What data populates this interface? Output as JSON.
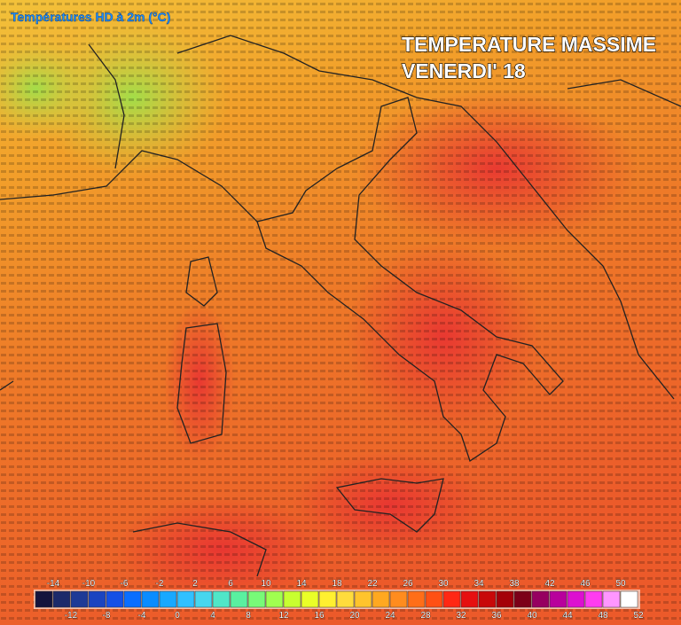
{
  "header": {
    "title": "Températures HD à 2m (°C)",
    "overlay_line1": "TEMPERATURE MASSIME",
    "overlay_line2": "VENERDI' 18"
  },
  "legend": {
    "top_labels": [
      -14,
      -10,
      -6,
      -2,
      2,
      6,
      10,
      14,
      18,
      22,
      26,
      30,
      34,
      38,
      42,
      46,
      50
    ],
    "bottom_labels": [
      -12,
      -8,
      -4,
      0,
      4,
      8,
      12,
      16,
      20,
      24,
      28,
      32,
      36,
      40,
      44,
      48,
      52
    ],
    "colors": [
      "#14143c",
      "#1c2a6a",
      "#1e3a96",
      "#1a44c0",
      "#1450e6",
      "#0a6eff",
      "#0a8cff",
      "#18a8ff",
      "#30c0ff",
      "#46d6ee",
      "#50e6c8",
      "#5af0a0",
      "#78fa78",
      "#a0ff50",
      "#c8ff30",
      "#eaff28",
      "#fff030",
      "#ffdc3c",
      "#ffc42c",
      "#ffa820",
      "#ff8c1e",
      "#ff6e18",
      "#ff5014",
      "#ff2814",
      "#e61010",
      "#c80808",
      "#a40008",
      "#7c0018",
      "#960060",
      "#b8009c",
      "#dc10d0",
      "#ff3cf0",
      "#ff96ff",
      "#ffffff"
    ]
  }
}
